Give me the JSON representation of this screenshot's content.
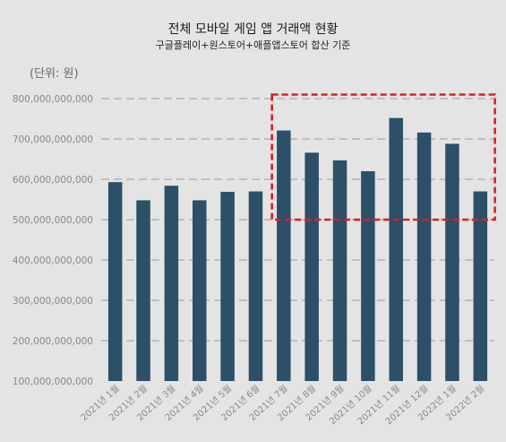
{
  "chart_data": {
    "type": "bar",
    "title": "전체 모바일 게임 앱 거래액 현황",
    "subtitle": "구글플레이+원스토어+애플앱스토어 합산 기준",
    "unit_label": "(단위: 원)",
    "categories": [
      "2021년 1월",
      "2021년 2월",
      "2021년 3월",
      "2021년 4월",
      "2021년 5월",
      "2021년 6월",
      "2021년 7월",
      "2021년 8월",
      "2021년 9월",
      "2021년 10월",
      "2021년 11월",
      "2021년 12월",
      "2022년 1월",
      "2022년 2월"
    ],
    "values": [
      593000000000,
      548000000000,
      584000000000,
      548000000000,
      569000000000,
      570000000000,
      721000000000,
      666000000000,
      647000000000,
      620000000000,
      752000000000,
      716000000000,
      688000000000,
      570000000000
    ],
    "ylim": [
      100000000000,
      800000000000
    ],
    "y_ticks": [
      "100,000,000,000",
      "200,000,000,000",
      "300,000,000,000",
      "400,000,000,000",
      "500,000,000,000",
      "600,000,000,000",
      "700,000,000,000",
      "800,000,000,000"
    ],
    "grid": true,
    "bar_color": "#2b5068",
    "highlight": {
      "color": "#e51b1b",
      "from_category": "2021년 7월",
      "to_category": "2022년 2월",
      "y_range": [
        500000000000,
        810000000000
      ]
    }
  }
}
